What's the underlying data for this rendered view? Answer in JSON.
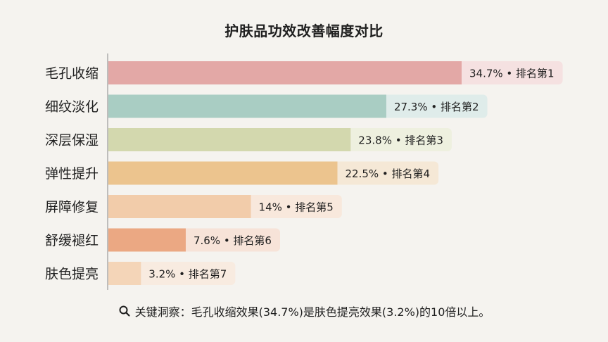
{
  "chart_data": {
    "type": "bar",
    "orientation": "horizontal",
    "title": "护肤品功效改善幅度对比",
    "categories": [
      "毛孔收缩",
      "细纹淡化",
      "深层保湿",
      "弹性提升",
      "屏障修复",
      "舒缓褪红",
      "肤色提亮"
    ],
    "values": [
      34.7,
      27.3,
      23.8,
      22.5,
      14,
      7.6,
      3.2
    ],
    "value_labels": [
      "34.7%",
      "27.3%",
      "23.8%",
      "22.5%",
      "14%",
      "7.6%",
      "3.2%"
    ],
    "rank_labels": [
      "排名第1",
      "排名第2",
      "排名第3",
      "排名第4",
      "排名第5",
      "排名第6",
      "排名第7"
    ],
    "bar_colors": [
      "#e3a8a6",
      "#a9cdc3",
      "#d3d8ae",
      "#ecc48e",
      "#f2ccaa",
      "#eba883",
      "#f4d5b8"
    ],
    "label_bg_colors": [
      "#f5e1e1",
      "#dfecea",
      "#eef0df",
      "#f5e8d6",
      "#f8e8dc",
      "#f7e3d8",
      "#f8ebe0"
    ],
    "xlim": [
      0,
      34.7
    ],
    "grid": false,
    "legend": "none"
  },
  "insight": {
    "icon": "search-icon",
    "text": "关键洞察：毛孔收缩效果(34.7%)是肤色提亮效果(3.2%)的10倍以上。"
  }
}
